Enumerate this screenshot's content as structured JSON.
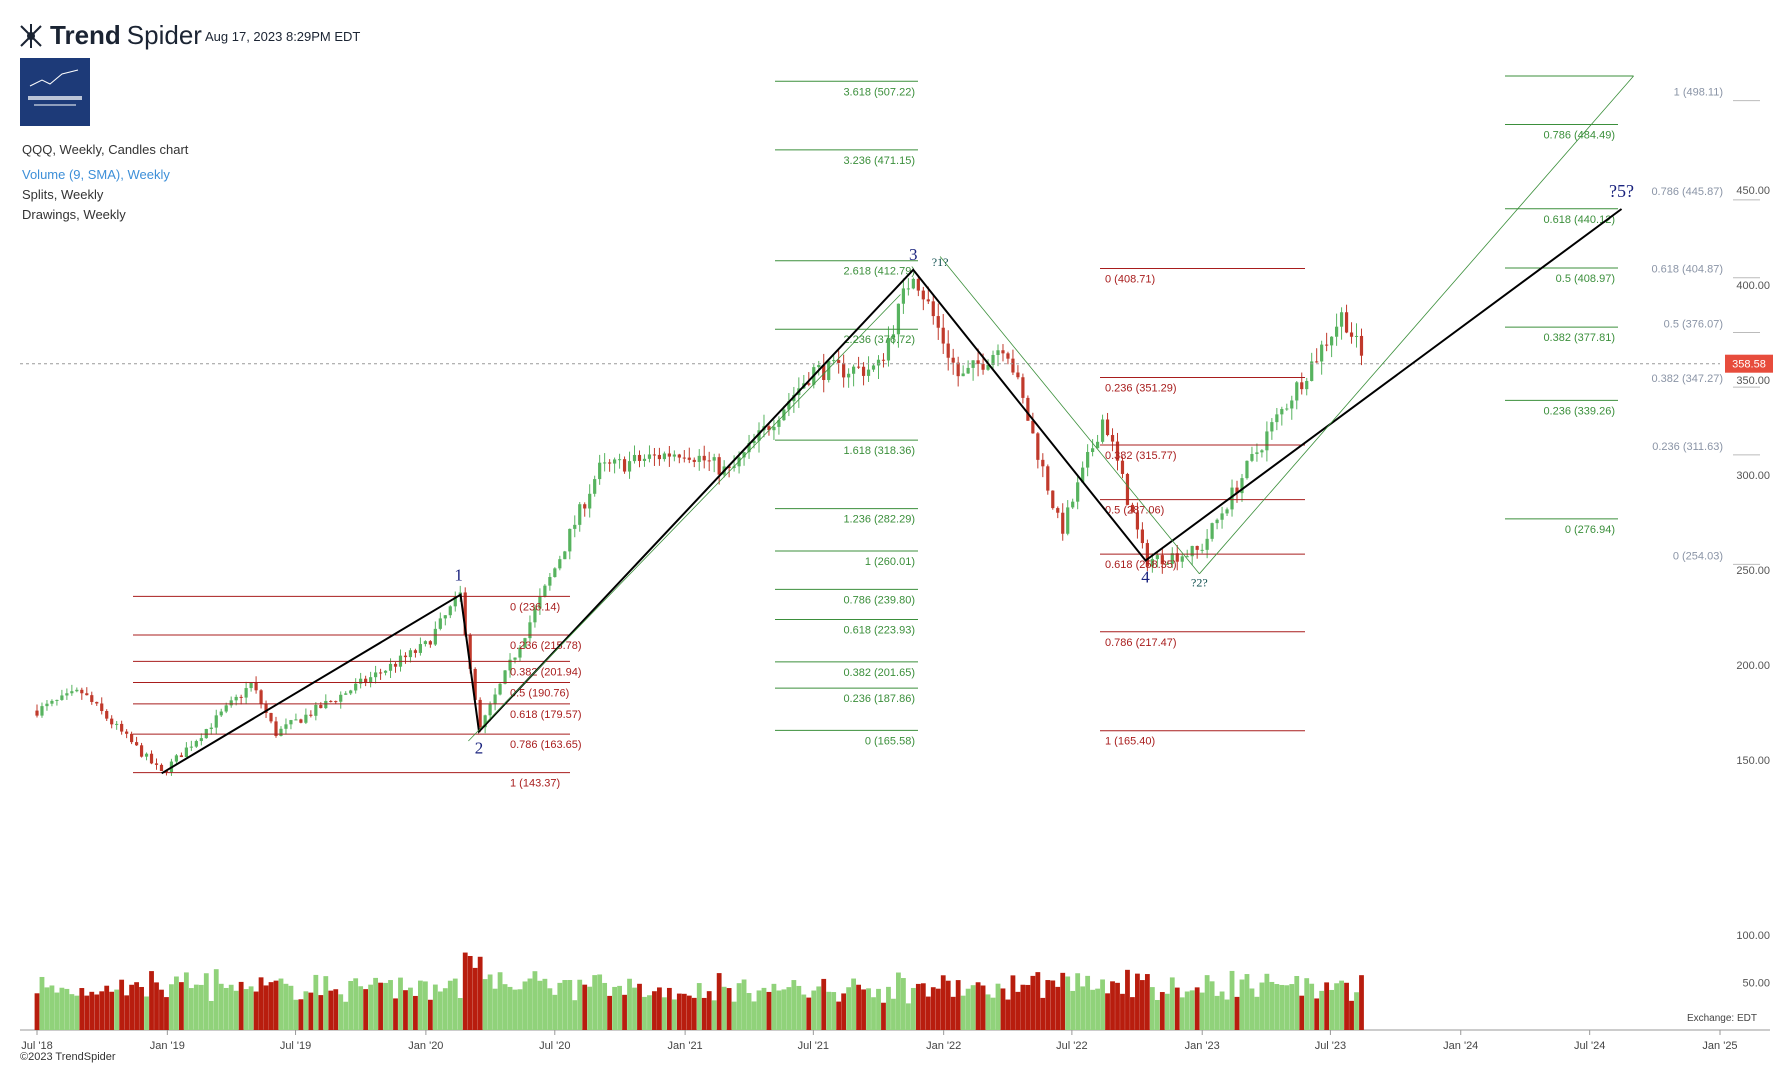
{
  "header": {
    "brand_bold": "Trend",
    "brand_light": "Spider",
    "timestamp": "Aug 17, 2023 8:29PM EDT",
    "legend": [
      "QQQ, Weekly, Candles chart",
      "Volume (9, SMA), Weekly",
      "Splits, Weekly",
      "Drawings, Weekly"
    ],
    "copyright": "©2023 TrendSpider",
    "exchange": "Exchange: EDT"
  },
  "colors": {
    "up": "#57b35f",
    "down": "#c0392b",
    "vol_up": "#90d27a",
    "vol_down": "#b81d0e",
    "fib_red": "#a81d1d",
    "fib_green": "#3b8f3b",
    "wave_label": "#1a237e",
    "last_price_bg": "#e74c3c"
  },
  "chart_data": {
    "type": "candlestick",
    "title": "QQQ, Weekly, Candles chart",
    "x_axis_labels": [
      "Jul '18",
      "Jan '19",
      "Jul '19",
      "Jan '20",
      "Jul '20",
      "Jan '21",
      "Jul '21",
      "Jan '22",
      "Jul '22",
      "Jan '23",
      "Jul '23",
      "Jan '24",
      "Jul '24",
      "Jan '25"
    ],
    "y_axis_labels": [
      "450.00",
      "400.00",
      "350.00",
      "300.00",
      "250.00",
      "200.00",
      "150.00"
    ],
    "volume_axis_labels": [
      "100.00",
      "50.00"
    ],
    "last_price": "358.58",
    "price_path": [
      [
        "2018-07-01",
        176
      ],
      [
        "2018-09-01",
        186
      ],
      [
        "2018-12-24",
        143
      ],
      [
        "2019-04-30",
        190
      ],
      [
        "2019-06-03",
        164
      ],
      [
        "2019-12-31",
        210
      ],
      [
        "2020-02-19",
        237
      ],
      [
        "2020-03-16",
        165
      ],
      [
        "2020-06-30",
        250
      ],
      [
        "2020-09-01",
        303
      ],
      [
        "2020-12-31",
        313
      ],
      [
        "2021-03-05",
        301
      ],
      [
        "2021-06-30",
        355
      ],
      [
        "2021-09-30",
        356
      ],
      [
        "2021-11-19",
        408
      ],
      [
        "2022-01-24",
        350
      ],
      [
        "2022-03-29",
        370
      ],
      [
        "2022-06-16",
        270
      ],
      [
        "2022-08-15",
        331
      ],
      [
        "2022-10-13",
        255
      ],
      [
        "2022-12-28",
        260
      ],
      [
        "2023-03-31",
        320
      ],
      [
        "2023-07-19",
        385
      ],
      [
        "2023-08-17",
        359
      ]
    ],
    "waves": [
      {
        "label": "1",
        "date": "2020-02-19",
        "price": 237
      },
      {
        "label": "2",
        "date": "2020-03-16",
        "price": 165
      },
      {
        "label": "3",
        "date": "2021-11-19",
        "price": 408
      },
      {
        "label": "4",
        "date": "2022-10-13",
        "price": 255
      },
      {
        "label": "?5?",
        "date": "2024-08-15",
        "price": 440
      }
    ],
    "alt_labels": [
      {
        "label": "?1?",
        "date": "2021-12-27",
        "price": 408
      },
      {
        "label": "?2?",
        "date": "2022-12-28",
        "price": 254
      }
    ],
    "fib_sets": [
      {
        "color": "red",
        "levels": [
          [
            "0 (236.14)",
            236.14
          ],
          [
            "0.236 (215.78)",
            215.78
          ],
          [
            "0.382 (201.94)",
            201.94
          ],
          [
            "0.5 (190.76)",
            190.76
          ],
          [
            "0.618 (179.57)",
            179.57
          ],
          [
            "0.786 (163.65)",
            163.65
          ],
          [
            "1 (143.37)",
            143.37
          ]
        ]
      },
      {
        "color": "green",
        "levels": [
          [
            "3.618 (507.22)",
            507.22
          ],
          [
            "3.236 (471.15)",
            471.15
          ],
          [
            "2.618 (412.79)",
            412.79
          ],
          [
            "2.236 (376.72)",
            376.72
          ],
          [
            "1.618 (318.36)",
            318.36
          ],
          [
            "1.236 (282.29)",
            282.29
          ],
          [
            "1 (260.01)",
            260.01
          ],
          [
            "0.786 (239.80)",
            239.8
          ],
          [
            "0.618 (223.93)",
            223.93
          ],
          [
            "0.382 (201.65)",
            201.65
          ],
          [
            "0.236 (187.86)",
            187.86
          ],
          [
            "0 (165.58)",
            165.58
          ]
        ]
      },
      {
        "color": "red",
        "levels": [
          [
            "0 (408.71)",
            408.71
          ],
          [
            "0.236 (351.29)",
            351.29
          ],
          [
            "0.382 (315.77)",
            315.77
          ],
          [
            "0.5 (287.06)",
            287.06
          ],
          [
            "0.618 (258.35)",
            258.35
          ],
          [
            "0.786 (217.47)",
            217.47
          ],
          [
            "1 (165.40)",
            165.4
          ]
        ]
      },
      {
        "color": "green",
        "levels": [
          [
            "0.786 (484.49)",
            484.49
          ],
          [
            "0.618 (440.12)",
            440.12
          ],
          [
            "0.5 (408.97)",
            408.97
          ],
          [
            "0.382 (377.81)",
            377.81
          ],
          [
            "0.236 (339.26)",
            339.26
          ],
          [
            "0 (276.94)",
            276.94
          ]
        ]
      },
      {
        "color": "gray",
        "levels": [
          [
            "1 (498.11)",
            498.11
          ],
          [
            "0.786 (445.87)",
            445.87
          ],
          [
            "0.618 (404.87)",
            404.87
          ],
          [
            "0.5 (376.07)",
            376.07
          ],
          [
            "0.382 (347.27)",
            347.27
          ],
          [
            "0.236 (311.63)",
            311.63
          ],
          [
            "0 (254.03)",
            254.03
          ]
        ]
      }
    ]
  }
}
